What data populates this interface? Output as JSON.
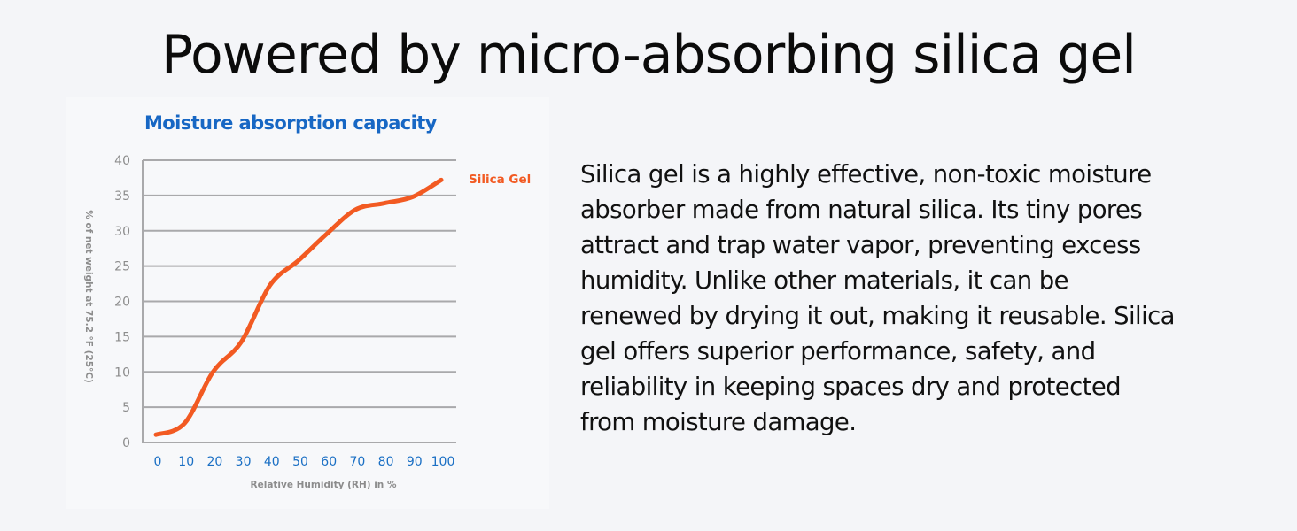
{
  "headline": "Powered by micro-absorbing silica gel",
  "description": {
    "lines": [
      "Silica gel is a highly effective, non-toxic moisture",
      "absorber made from natural silica. Its tiny pores",
      "attract and trap water vapor, preventing excess",
      "humidity. Unlike other materials, it can be",
      "renewed by drying it out, making it reusable. Silica",
      "gel offers superior performance, safety, and",
      "reliability in keeping spaces dry and protected",
      "from moisture damage."
    ]
  },
  "colors": {
    "title": "#1767c4",
    "x_ticks": "#1a6fc4",
    "y_ticks": "#8c8c8c",
    "axis_label": "#8c8c8c",
    "grid": "#a9a9ab",
    "series": "#f25a22"
  },
  "chart_data": {
    "type": "line",
    "title": "Moisture absorption capacity",
    "xlabel": "Relative Humidity (RH) in %",
    "ylabel": "% of net weight at 75.2 °F (25°C)",
    "x": [
      0,
      10,
      20,
      30,
      40,
      50,
      60,
      70,
      80,
      90,
      100
    ],
    "series": [
      {
        "name": "Silica Gel",
        "values": [
          1.1,
          2.7,
          10.0,
          14.3,
          22.3,
          25.8,
          29.6,
          33.0,
          33.9,
          34.8,
          37.2
        ]
      }
    ],
    "xticks": [
      "0",
      "10",
      "20",
      "30",
      "40",
      "50",
      "60",
      "70",
      "80",
      "90",
      "100"
    ],
    "yticks": [
      "0",
      "5",
      "10",
      "15",
      "20",
      "25",
      "30",
      "35",
      "40"
    ],
    "xlim": [
      0,
      100
    ],
    "ylim": [
      0,
      40
    ],
    "grid": "horizontal",
    "legend_position": "right, at end of line"
  }
}
